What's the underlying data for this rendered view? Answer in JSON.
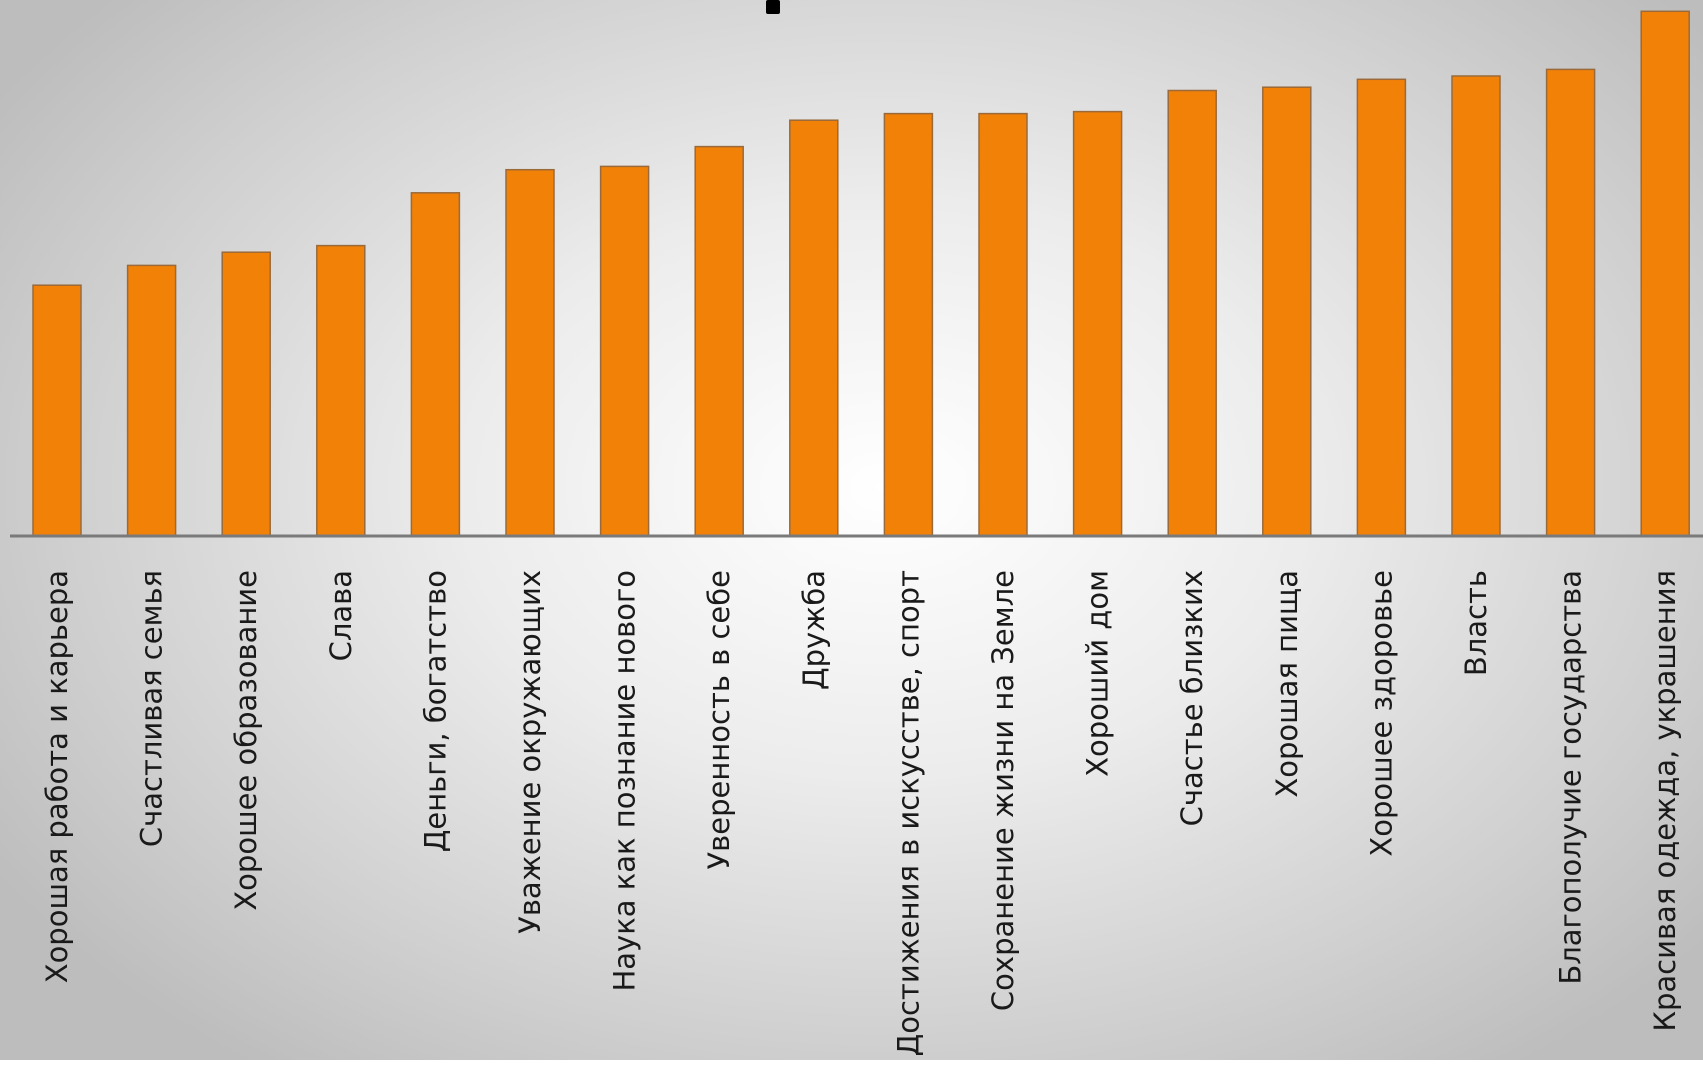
{
  "chart_data": {
    "type": "bar",
    "title": "",
    "xlabel": "",
    "ylabel": "",
    "categories": [
      "Хорошая работа и карьера",
      "Счастливая семья",
      "Хорошее образование",
      "Слава",
      "Деньги, богатство",
      "Уважение окружающих",
      "Наука как познание нового",
      "Уверенность в себе",
      "Дружба",
      "Достижения в искусстве, спорт",
      "Сохранение жизни на Земле",
      "Хороший дом",
      "Счастье близких",
      "Хорошая пища",
      "Хорошее здоровье",
      "Власть",
      "Благополучие государства",
      "Красивая одежда, украшения"
    ],
    "values": [
      38,
      41,
      43,
      44,
      52,
      55.5,
      56,
      59,
      63,
      64,
      64,
      64.3,
      67.5,
      68,
      69.2,
      69.7,
      70.7,
      79.5
    ],
    "ylim": [
      0,
      80
    ],
    "grid": false,
    "legend": "none",
    "bar_color": "#f28108",
    "bar_edge_color": "#9a6a3a",
    "axis_color": "#7a7a7a"
  }
}
